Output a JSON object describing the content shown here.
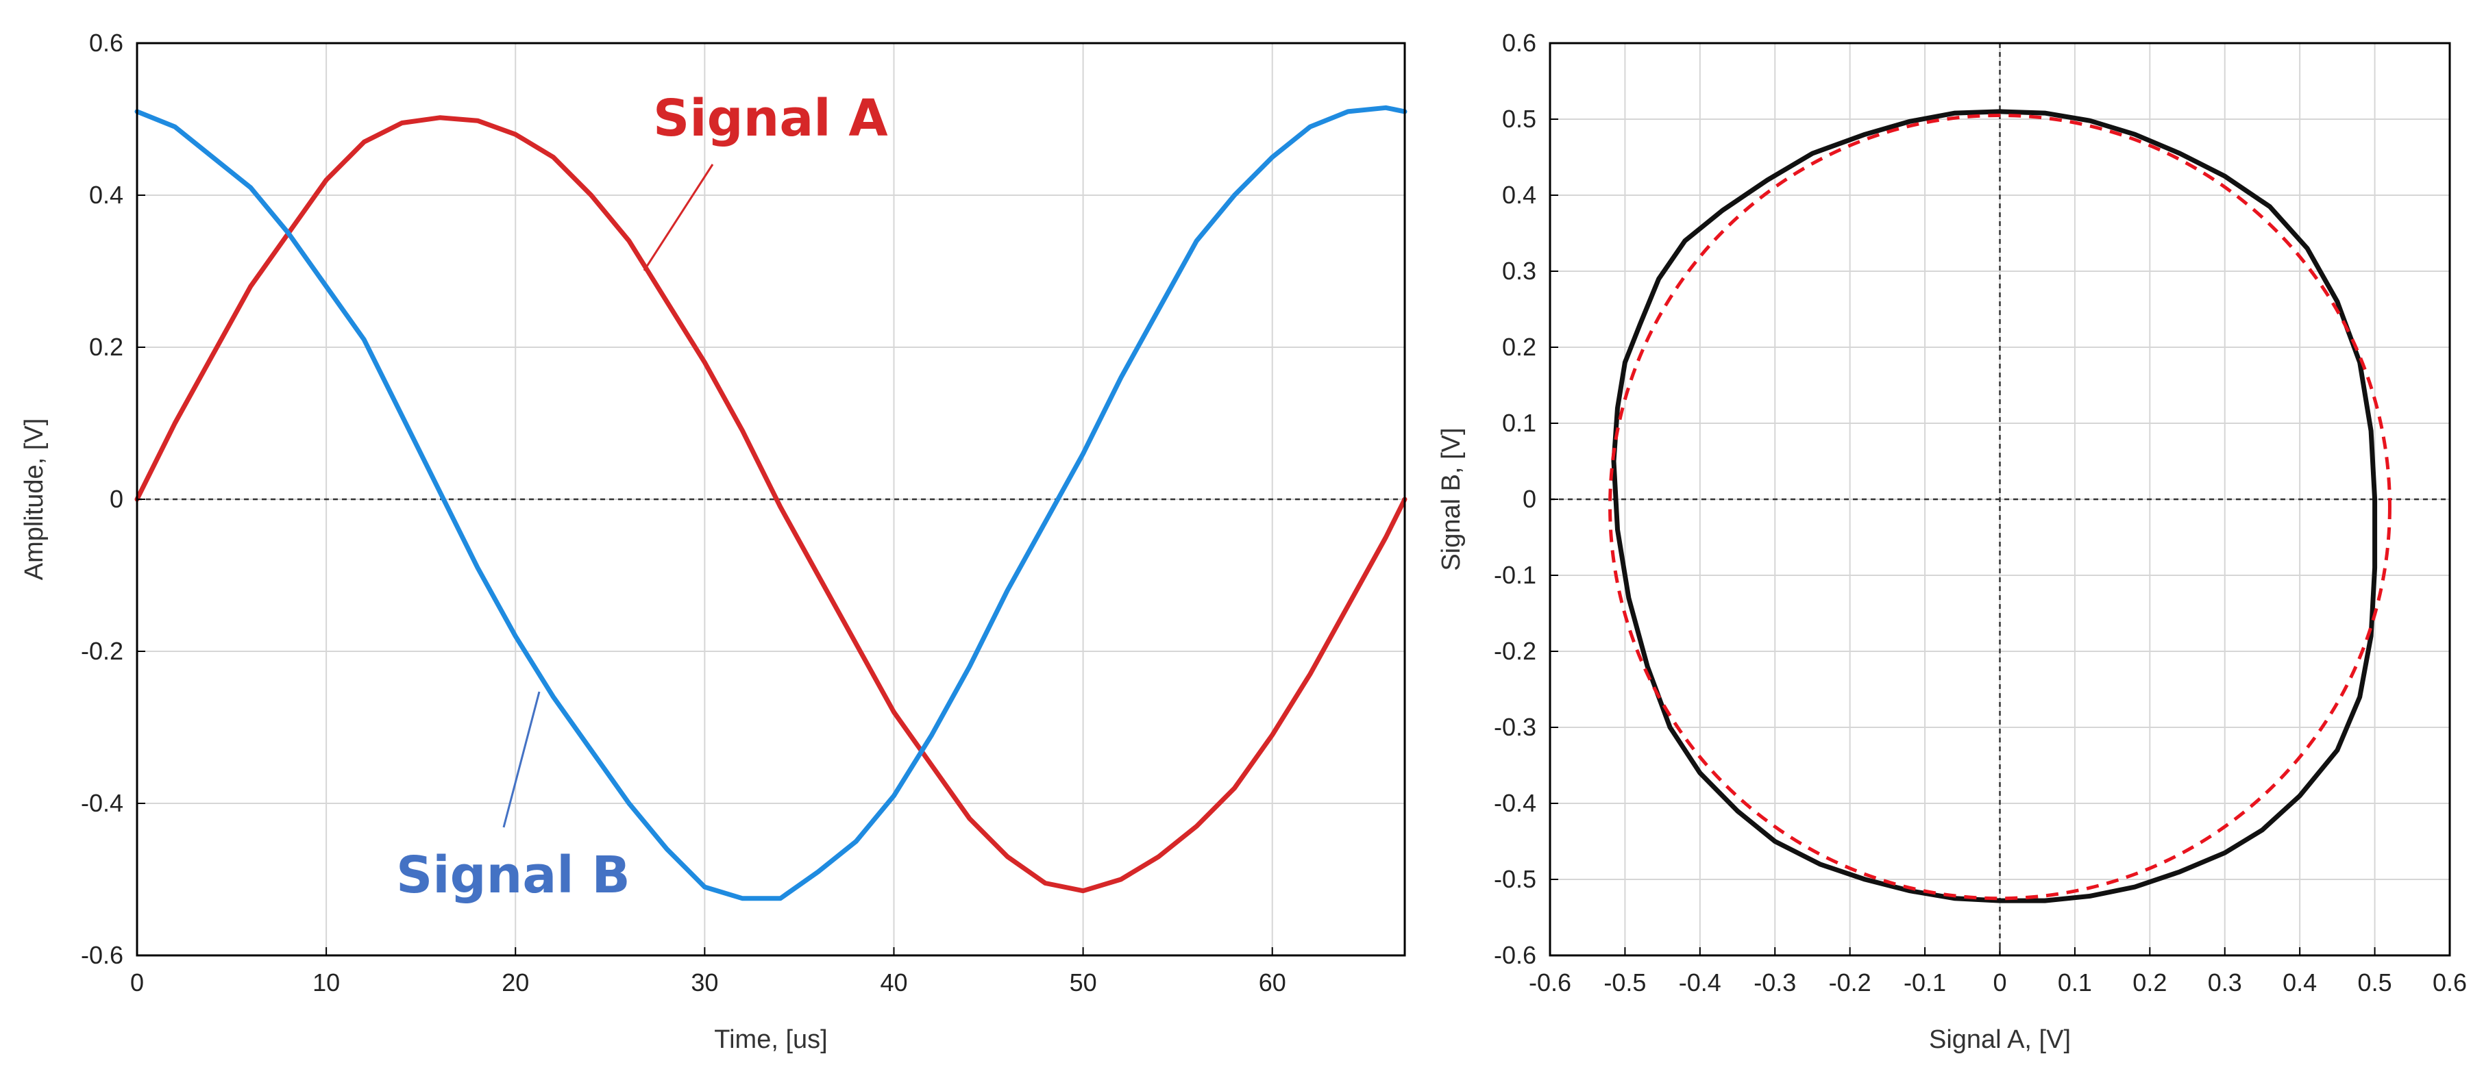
{
  "colors": {
    "signal_a": "#d62728",
    "signal_b": "#1f8be0",
    "annot_b": "#4472c4",
    "lissajous": "#111111",
    "fit": "#e8141e",
    "grid": "#d6d6d6",
    "axis": "#000000"
  },
  "chart_data": [
    {
      "type": "line",
      "xlabel": "Time, [us]",
      "ylabel": "Amplitude, [V]",
      "xlim": [
        0,
        67
      ],
      "ylim": [
        -0.6,
        0.6
      ],
      "grid": true,
      "x_ticks": [
        0,
        10,
        20,
        30,
        40,
        50,
        60
      ],
      "x_tick_labels": [
        "0",
        "10",
        "20",
        "30",
        "40",
        "50",
        "60"
      ],
      "y_ticks": [
        0.6,
        0.4,
        0.2,
        0,
        -0.2,
        -0.4,
        -0.6
      ],
      "y_tick_labels": [
        "0.6",
        "0.4",
        "0.2",
        "0",
        "-0.2",
        "-0.4",
        "-0.6"
      ],
      "zero_line": true,
      "series": [
        {
          "name": "Signal A",
          "x": [
            0,
            2,
            4,
            6,
            8,
            10,
            12,
            14,
            16,
            18,
            20,
            22,
            24,
            26,
            28,
            30,
            32,
            34,
            36,
            38,
            40,
            42,
            44,
            46,
            48,
            50,
            52,
            54,
            56,
            58,
            60,
            62,
            64,
            66,
            67
          ],
          "values": [
            0.0,
            0.1,
            0.19,
            0.28,
            0.35,
            0.42,
            0.47,
            0.495,
            0.502,
            0.498,
            0.48,
            0.45,
            0.4,
            0.34,
            0.26,
            0.18,
            0.09,
            -0.01,
            -0.1,
            -0.19,
            -0.28,
            -0.35,
            -0.42,
            -0.47,
            -0.505,
            -0.515,
            -0.5,
            -0.47,
            -0.43,
            -0.38,
            -0.31,
            -0.23,
            -0.14,
            -0.05,
            0.0
          ]
        },
        {
          "name": "Signal B",
          "x": [
            0,
            2,
            4,
            6,
            8,
            10,
            12,
            14,
            16,
            18,
            20,
            22,
            24,
            26,
            28,
            30,
            32,
            34,
            36,
            38,
            40,
            42,
            44,
            46,
            48,
            50,
            52,
            54,
            56,
            58,
            60,
            62,
            64,
            66,
            67
          ],
          "values": [
            0.51,
            0.49,
            0.45,
            0.41,
            0.35,
            0.28,
            0.21,
            0.11,
            0.01,
            -0.09,
            -0.18,
            -0.26,
            -0.33,
            -0.4,
            -0.46,
            -0.51,
            -0.525,
            -0.525,
            -0.49,
            -0.45,
            -0.39,
            -0.31,
            -0.22,
            -0.12,
            -0.03,
            0.06,
            0.16,
            0.25,
            0.34,
            0.4,
            0.45,
            0.49,
            0.51,
            0.515,
            0.51
          ]
        }
      ],
      "annotations": [
        {
          "text": "Signal A",
          "series": "Signal A"
        },
        {
          "text": "Signal B",
          "series": "Signal B"
        }
      ]
    },
    {
      "type": "line",
      "xlabel": "Signal A, [V]",
      "ylabel": "Signal B, [V]",
      "xlim": [
        -0.6,
        0.6
      ],
      "ylim": [
        -0.6,
        0.6
      ],
      "grid": true,
      "x_ticks": [
        -0.6,
        -0.5,
        -0.4,
        -0.3,
        -0.2,
        -0.1,
        0,
        0.1,
        0.2,
        0.3,
        0.4,
        0.5,
        0.6
      ],
      "x_tick_labels": [
        "-0.6",
        "-0.5",
        "-0.4",
        "-0.3",
        "-0.2",
        "-0.1",
        "0",
        "0.1",
        "0.2",
        "0.3",
        "0.4",
        "0.5",
        "0.6"
      ],
      "y_ticks": [
        0.6,
        0.5,
        0.4,
        0.3,
        0.2,
        0.1,
        0,
        -0.1,
        -0.2,
        -0.3,
        -0.4,
        -0.5,
        -0.6
      ],
      "y_tick_labels": [
        "0.6",
        "0.5",
        "0.4",
        "0.3",
        "0.2",
        "0.1",
        "0",
        "-0.1",
        "-0.2",
        "-0.3",
        "-0.4",
        "-0.5",
        "-0.6"
      ],
      "zero_lines": true,
      "series": [
        {
          "style": "solid",
          "x": [
            0.0,
            0.06,
            0.12,
            0.18,
            0.24,
            0.3,
            0.36,
            0.41,
            0.45,
            0.48,
            0.495,
            0.5,
            0.5,
            0.495,
            0.48,
            0.45,
            0.4,
            0.35,
            0.3,
            0.24,
            0.18,
            0.12,
            0.06,
            0.0,
            -0.06,
            -0.12,
            -0.18,
            -0.24,
            -0.3,
            -0.35,
            -0.4,
            -0.44,
            -0.47,
            -0.495,
            -0.51,
            -0.515,
            -0.51,
            -0.5,
            -0.48,
            -0.455,
            -0.42,
            -0.37,
            -0.31,
            -0.25,
            -0.18,
            -0.12,
            -0.06,
            0.0
          ],
          "y": [
            0.51,
            0.508,
            0.498,
            0.48,
            0.455,
            0.425,
            0.385,
            0.33,
            0.26,
            0.18,
            0.09,
            0.0,
            -0.09,
            -0.18,
            -0.26,
            -0.33,
            -0.39,
            -0.435,
            -0.465,
            -0.49,
            -0.51,
            -0.522,
            -0.528,
            -0.528,
            -0.525,
            -0.515,
            -0.5,
            -0.48,
            -0.45,
            -0.41,
            -0.36,
            -0.3,
            -0.22,
            -0.13,
            -0.04,
            0.05,
            0.12,
            0.18,
            0.23,
            0.29,
            0.34,
            0.38,
            0.42,
            0.455,
            0.48,
            0.497,
            0.508,
            0.51
          ]
        },
        {
          "style": "dashed",
          "type": "ellipse",
          "center": [
            0,
            -0.01
          ],
          "radius_x": 0.52,
          "radius_y": 0.515
        }
      ]
    }
  ]
}
